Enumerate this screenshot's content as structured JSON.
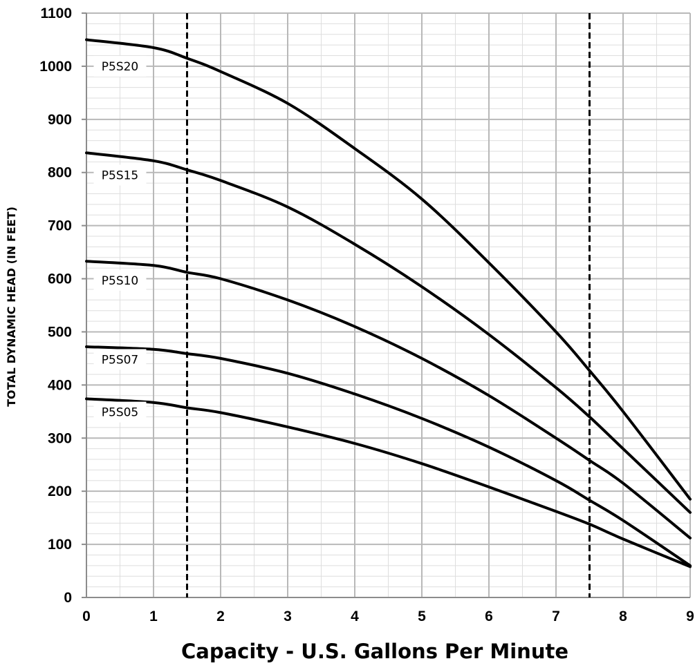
{
  "chart_data": {
    "type": "line",
    "title": "",
    "xlabel": "Capacity - U.S. Gallons Per Minute",
    "ylabel": "TOTAL DYNAMIC HEAD (IN FEET)",
    "xlim": [
      0,
      9
    ],
    "ylim": [
      0,
      1100
    ],
    "x_ticks": [
      "0",
      "1",
      "2",
      "3",
      "4",
      "5",
      "6",
      "7",
      "8",
      "9"
    ],
    "y_ticks": [
      "0",
      "100",
      "200",
      "300",
      "400",
      "500",
      "600",
      "700",
      "800",
      "900",
      "1000",
      "1100"
    ],
    "grid": true,
    "reference_lines_x": [
      1.5,
      7.5
    ],
    "series": [
      {
        "name": "P5S20",
        "x": [
          0,
          1,
          1.5,
          2,
          3,
          4,
          5,
          6,
          7,
          7.5,
          8,
          9
        ],
        "values": [
          1050,
          1035,
          1015,
          990,
          930,
          845,
          750,
          630,
          500,
          427,
          350,
          185
        ]
      },
      {
        "name": "P5S15",
        "x": [
          0,
          1,
          1.5,
          2,
          3,
          4,
          5,
          6,
          7,
          7.5,
          8,
          9
        ],
        "values": [
          837,
          822,
          805,
          785,
          735,
          665,
          585,
          495,
          395,
          340,
          280,
          160
        ]
      },
      {
        "name": "P5S10",
        "x": [
          0,
          1,
          1.5,
          2,
          3,
          4,
          5,
          6,
          7,
          7.5,
          8,
          9
        ],
        "values": [
          633,
          625,
          612,
          600,
          560,
          510,
          450,
          380,
          300,
          258,
          215,
          112
        ]
      },
      {
        "name": "P5S07",
        "x": [
          0,
          1,
          1.5,
          2,
          3,
          4,
          5,
          6,
          7,
          7.5,
          8,
          9
        ],
        "values": [
          472,
          467,
          459,
          450,
          422,
          383,
          337,
          283,
          220,
          183,
          145,
          60
        ]
      },
      {
        "name": "P5S05",
        "x": [
          0,
          1,
          1.5,
          2,
          3,
          4,
          5,
          6,
          7,
          7.5,
          8,
          9
        ],
        "values": [
          374,
          367,
          357,
          348,
          321,
          290,
          252,
          208,
          162,
          138,
          110,
          58
        ]
      }
    ],
    "labels": [
      {
        "text": "P5S20",
        "x": 0.5,
        "y": 1000
      },
      {
        "text": "P5S15",
        "x": 0.5,
        "y": 795
      },
      {
        "text": "P5S10",
        "x": 0.5,
        "y": 597
      },
      {
        "text": "P5S07",
        "x": 0.5,
        "y": 448
      },
      {
        "text": "P5S05",
        "x": 0.5,
        "y": 349
      }
    ]
  }
}
